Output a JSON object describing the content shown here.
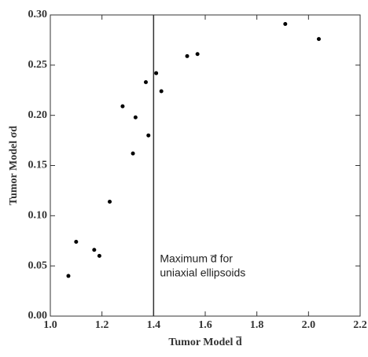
{
  "chart_data": {
    "type": "scatter",
    "x_label": "Tumor Model d̅",
    "y_label": "Tumor Model σd",
    "annotation": [
      "Maximum d̅ for",
      "uniaxial ellipsoids"
    ],
    "annotation_x": 1.4,
    "color": "#000000",
    "x": [
      1.07,
      1.1,
      1.17,
      1.19,
      1.23,
      1.28,
      1.32,
      1.33,
      1.37,
      1.38,
      1.41,
      1.43,
      1.53,
      1.57,
      1.91,
      2.04
    ],
    "values": [
      0.04,
      0.074,
      0.066,
      0.06,
      0.114,
      0.209,
      0.162,
      0.198,
      0.233,
      0.18,
      0.242,
      0.224,
      0.259,
      0.261,
      0.291,
      0.276
    ],
    "xlim": [
      1.0,
      2.2
    ],
    "ylim": [
      0,
      0.3
    ],
    "xticks": [
      {
        "value": 1.0,
        "label": "1.0"
      },
      {
        "value": 1.2,
        "label": "1.2"
      },
      {
        "value": 1.4,
        "label": "1.4"
      },
      {
        "value": 1.6,
        "label": "1.6"
      },
      {
        "value": 1.8,
        "label": "1.8"
      },
      {
        "value": 2.0,
        "label": "2.0"
      },
      {
        "value": 2.2,
        "label": "2.2"
      }
    ],
    "yticks": [
      {
        "value": 0,
        "label": "0.00"
      },
      {
        "value": 0.05,
        "label": "0.05"
      },
      {
        "value": 0.1,
        "label": "0.10"
      },
      {
        "value": 0.15,
        "label": "0.15"
      },
      {
        "value": 0.2,
        "label": "0.20"
      },
      {
        "value": 0.25,
        "label": "0.25"
      },
      {
        "value": 0.3,
        "label": "0.30"
      }
    ]
  }
}
